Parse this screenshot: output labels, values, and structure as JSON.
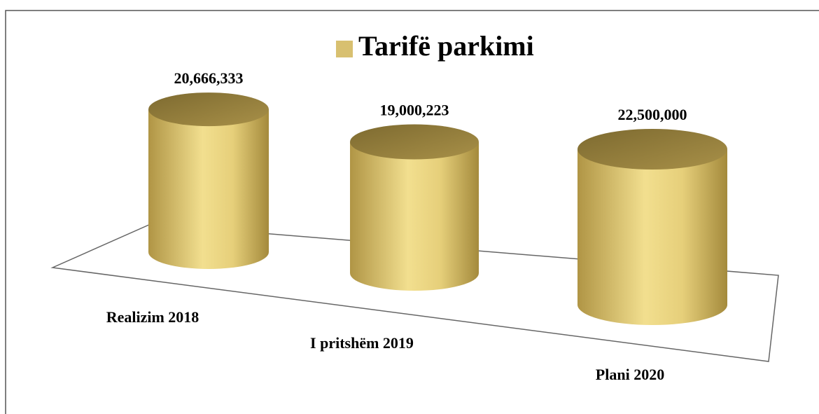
{
  "chart_data": {
    "type": "cylinder",
    "legend": "Tarifë parkimi",
    "categories": [
      "Realizim 2018",
      "I pritshëm 2019",
      "Plani 2020"
    ],
    "values": [
      20666333,
      19000223,
      22500000
    ],
    "value_labels": [
      "20,666,333",
      "19,000,223",
      "22,500,000"
    ],
    "color": "#d8c070"
  }
}
